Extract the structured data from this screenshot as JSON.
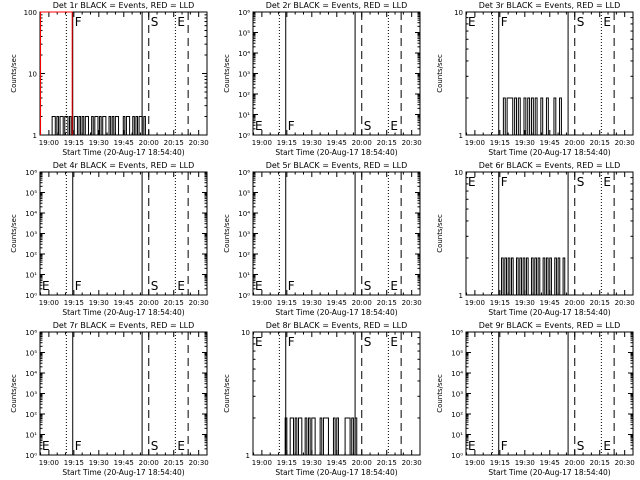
{
  "page": {
    "background": "#ffffff",
    "ink": "#000000",
    "lld_color": "#ff0000"
  },
  "chart_data": [
    {
      "type": "line",
      "title": "Det 1r BLACK = Events, RED = LLD",
      "xlabel": "Start Time (20-Aug-17 18:54:40)",
      "ylabel": "Counts/sec",
      "yscale": "log",
      "ylim": [
        1,
        100
      ],
      "y_tick_labels": [
        {
          "v": 1,
          "t": "1"
        },
        {
          "v": 10,
          "t": "10"
        },
        {
          "v": 100,
          "t": "100"
        }
      ],
      "xlim": [
        "18:54:40",
        "20:35:00"
      ],
      "x_tick_labels": [
        "19:00",
        "19:15",
        "19:30",
        "19:45",
        "20:00",
        "20:15",
        "20:30"
      ],
      "markers": [
        {
          "type": "dotted",
          "x": "19:10:30"
        },
        {
          "type": "solid",
          "x": "19:14:20",
          "label": "F"
        },
        {
          "type": "solid",
          "x": "19:56:00"
        },
        {
          "type": "dashed",
          "x": "20:00:00",
          "label": "S"
        },
        {
          "type": "dotted",
          "x": "20:16:00",
          "label": "E"
        },
        {
          "type": "dashed",
          "x": "20:23:40"
        }
      ],
      "marker_label_pos": "top",
      "series": [
        {
          "role": "events",
          "color": "#000000",
          "x_start": "19:01:00",
          "x_end": "19:58:00",
          "values": [
            1,
            2,
            2,
            1,
            2,
            1,
            2,
            2,
            1,
            2,
            2,
            1,
            2,
            1,
            1,
            2,
            2,
            1,
            2,
            1,
            2,
            1,
            2,
            2,
            1,
            1,
            2,
            1,
            2,
            2,
            1,
            2,
            1,
            2,
            2,
            1,
            1,
            2,
            1,
            2,
            1,
            2,
            2,
            1,
            1,
            1,
            2,
            1,
            2,
            2,
            1,
            1,
            2,
            1,
            2,
            1,
            2,
            2,
            1,
            2
          ]
        },
        {
          "role": "lld",
          "color": "#ff0000",
          "x_start": "18:55:00",
          "x_end": "19:14:00",
          "values": [
            100,
            100,
            100,
            100,
            100,
            100,
            100,
            100
          ]
        }
      ]
    },
    {
      "type": "line",
      "title": "Det 2r BLACK = Events, RED = LLD",
      "xlabel": "Start Time (20-Aug-17 18:54:40)",
      "ylabel": "Counts/sec",
      "yscale": "log",
      "ylim": [
        1,
        1000000
      ],
      "y_tick_labels": [
        {
          "v": 1,
          "t": "10⁰"
        },
        {
          "v": 10,
          "t": "10¹"
        },
        {
          "v": 100,
          "t": "10²"
        },
        {
          "v": 1000,
          "t": "10³"
        },
        {
          "v": 10000,
          "t": "10⁴"
        },
        {
          "v": 100000,
          "t": "10⁵"
        },
        {
          "v": 1000000,
          "t": "10⁶"
        }
      ],
      "xlim": [
        "18:54:40",
        "20:35:00"
      ],
      "x_tick_labels": [
        "19:00",
        "19:15",
        "19:30",
        "19:45",
        "20:00",
        "20:15",
        "20:30"
      ],
      "markers": [
        {
          "type": "dotted",
          "x": "19:10:30"
        },
        {
          "type": "solid",
          "x": "19:14:20",
          "label": "F"
        },
        {
          "type": "solid",
          "x": "19:56:00"
        },
        {
          "type": "dashed",
          "x": "20:00:00",
          "label": "S"
        },
        {
          "type": "dotted",
          "x": "20:16:00",
          "label": "E"
        },
        {
          "type": "dashed",
          "x": "20:23:40"
        }
      ],
      "left_label": "E",
      "marker_label_pos": "bottom",
      "series": []
    },
    {
      "type": "line",
      "title": "Det 3r BLACK = Events, RED = LLD",
      "xlabel": "Start Time (20-Aug-17 18:54:40)",
      "ylabel": "Counts/sec",
      "yscale": "log",
      "ylim": [
        1,
        10
      ],
      "y_tick_labels": [
        {
          "v": 1,
          "t": "1"
        },
        {
          "v": 10,
          "t": "10"
        }
      ],
      "xlim": [
        "18:54:40",
        "20:35:00"
      ],
      "x_tick_labels": [
        "19:00",
        "19:15",
        "19:30",
        "19:45",
        "20:00",
        "20:15",
        "20:30"
      ],
      "markers": [
        {
          "type": "dotted",
          "x": "19:10:30"
        },
        {
          "type": "solid",
          "x": "19:14:20",
          "label": "F"
        },
        {
          "type": "solid",
          "x": "19:56:00"
        },
        {
          "type": "dashed",
          "x": "20:00:00",
          "label": "S"
        },
        {
          "type": "dotted",
          "x": "20:16:00",
          "label": "E"
        },
        {
          "type": "dashed",
          "x": "20:23:40"
        }
      ],
      "left_label": "E",
      "marker_label_pos": "top",
      "series": [
        {
          "role": "events",
          "color": "#000000",
          "x_start": "19:16:00",
          "x_end": "19:52:00",
          "values": [
            1,
            2,
            1,
            2,
            2,
            2,
            1,
            2,
            1,
            2,
            1,
            1,
            2,
            1,
            2,
            1,
            2,
            1,
            2,
            1,
            1,
            2,
            1,
            1,
            2,
            1,
            1,
            1,
            2,
            1,
            1,
            2
          ]
        }
      ]
    },
    {
      "type": "line",
      "title": "Det 4r BLACK = Events, RED = LLD",
      "xlabel": "Start Time (20-Aug-17 18:54:40)",
      "ylabel": "Counts/sec",
      "yscale": "log",
      "ylim": [
        1,
        1000000
      ],
      "y_tick_labels": [
        {
          "v": 1,
          "t": "10⁰"
        },
        {
          "v": 10,
          "t": "10¹"
        },
        {
          "v": 100,
          "t": "10²"
        },
        {
          "v": 1000,
          "t": "10³"
        },
        {
          "v": 10000,
          "t": "10⁴"
        },
        {
          "v": 100000,
          "t": "10⁵"
        },
        {
          "v": 1000000,
          "t": "10⁶"
        }
      ],
      "xlim": [
        "18:54:40",
        "20:35:00"
      ],
      "x_tick_labels": [
        "19:00",
        "19:15",
        "19:30",
        "19:45",
        "20:00",
        "20:15",
        "20:30"
      ],
      "markers": [
        {
          "type": "dotted",
          "x": "19:10:30"
        },
        {
          "type": "solid",
          "x": "19:14:20",
          "label": "F"
        },
        {
          "type": "solid",
          "x": "19:56:00"
        },
        {
          "type": "dashed",
          "x": "20:00:00",
          "label": "S"
        },
        {
          "type": "dotted",
          "x": "20:16:00",
          "label": "E"
        },
        {
          "type": "dashed",
          "x": "20:23:40"
        }
      ],
      "left_label": "E",
      "marker_label_pos": "bottom",
      "series": []
    },
    {
      "type": "line",
      "title": "Det 5r BLACK = Events, RED = LLD",
      "xlabel": "Start Time (20-Aug-17 18:54:40)",
      "ylabel": "Counts/sec",
      "yscale": "log",
      "ylim": [
        1,
        1000000
      ],
      "y_tick_labels": [
        {
          "v": 1,
          "t": "10⁰"
        },
        {
          "v": 10,
          "t": "10¹"
        },
        {
          "v": 100,
          "t": "10²"
        },
        {
          "v": 1000,
          "t": "10³"
        },
        {
          "v": 10000,
          "t": "10⁴"
        },
        {
          "v": 100000,
          "t": "10⁵"
        },
        {
          "v": 1000000,
          "t": "10⁶"
        }
      ],
      "xlim": [
        "18:54:40",
        "20:35:00"
      ],
      "x_tick_labels": [
        "19:00",
        "19:15",
        "19:30",
        "19:45",
        "20:00",
        "20:15",
        "20:30"
      ],
      "markers": [
        {
          "type": "dotted",
          "x": "19:10:30"
        },
        {
          "type": "solid",
          "x": "19:14:20",
          "label": "F"
        },
        {
          "type": "solid",
          "x": "19:56:00"
        },
        {
          "type": "dashed",
          "x": "20:00:00",
          "label": "S"
        },
        {
          "type": "dotted",
          "x": "20:16:00",
          "label": "E"
        },
        {
          "type": "dashed",
          "x": "20:23:40"
        }
      ],
      "left_label": "E",
      "marker_label_pos": "bottom",
      "series": []
    },
    {
      "type": "line",
      "title": "Det 6r BLACK = Events, RED = LLD",
      "xlabel": "Start Time (20-Aug-17 18:54:40)",
      "ylabel": "Counts/sec",
      "yscale": "log",
      "ylim": [
        1,
        10
      ],
      "y_tick_labels": [
        {
          "v": 1,
          "t": "1"
        },
        {
          "v": 10,
          "t": "10"
        }
      ],
      "xlim": [
        "18:54:40",
        "20:35:00"
      ],
      "x_tick_labels": [
        "19:00",
        "19:15",
        "19:30",
        "19:45",
        "20:00",
        "20:15",
        "20:30"
      ],
      "markers": [
        {
          "type": "dotted",
          "x": "19:10:30"
        },
        {
          "type": "solid",
          "x": "19:14:20",
          "label": "F"
        },
        {
          "type": "solid",
          "x": "19:56:00"
        },
        {
          "type": "dashed",
          "x": "20:00:00",
          "label": "S"
        },
        {
          "type": "dotted",
          "x": "20:16:00",
          "label": "E"
        },
        {
          "type": "dashed",
          "x": "20:23:40"
        }
      ],
      "left_label": "E",
      "marker_label_pos": "top",
      "series": [
        {
          "role": "events",
          "color": "#000000",
          "x_start": "19:15:00",
          "x_end": "19:55:00",
          "values": [
            1,
            2,
            1,
            2,
            1,
            2,
            1,
            2,
            1,
            1,
            2,
            1,
            2,
            1,
            2,
            1,
            2,
            1,
            1,
            2,
            1,
            2,
            1,
            2,
            1,
            1,
            2,
            1,
            2,
            1,
            2,
            1,
            1,
            2,
            1,
            2,
            1,
            1,
            2,
            1
          ]
        }
      ]
    },
    {
      "type": "line",
      "title": "Det 7r BLACK = Events, RED = LLD",
      "xlabel": "Start Time (20-Aug-17 18:54:40)",
      "ylabel": "Counts/sec",
      "yscale": "log",
      "ylim": [
        1,
        1000000
      ],
      "y_tick_labels": [
        {
          "v": 1,
          "t": "10⁰"
        },
        {
          "v": 10,
          "t": "10¹"
        },
        {
          "v": 100,
          "t": "10²"
        },
        {
          "v": 1000,
          "t": "10³"
        },
        {
          "v": 10000,
          "t": "10⁴"
        },
        {
          "v": 100000,
          "t": "10⁵"
        },
        {
          "v": 1000000,
          "t": "10⁶"
        }
      ],
      "xlim": [
        "18:54:40",
        "20:35:00"
      ],
      "x_tick_labels": [
        "19:00",
        "19:15",
        "19:30",
        "19:45",
        "20:00",
        "20:15",
        "20:30"
      ],
      "markers": [
        {
          "type": "dotted",
          "x": "19:10:30"
        },
        {
          "type": "solid",
          "x": "19:14:20",
          "label": "F"
        },
        {
          "type": "solid",
          "x": "19:56:00"
        },
        {
          "type": "dashed",
          "x": "20:00:00",
          "label": "S"
        },
        {
          "type": "dotted",
          "x": "20:16:00",
          "label": "E"
        },
        {
          "type": "dashed",
          "x": "20:23:40"
        }
      ],
      "left_label": "E",
      "marker_label_pos": "bottom",
      "series": []
    },
    {
      "type": "line",
      "title": "Det 8r BLACK = Events, RED = LLD",
      "xlabel": "Start Time (20-Aug-17 18:54:40)",
      "ylabel": "Counts/sec",
      "yscale": "log",
      "ylim": [
        1,
        10
      ],
      "y_tick_labels": [
        {
          "v": 1,
          "t": "1"
        },
        {
          "v": 10,
          "t": "10"
        }
      ],
      "xlim": [
        "18:54:40",
        "20:35:00"
      ],
      "x_tick_labels": [
        "19:00",
        "19:15",
        "19:30",
        "19:45",
        "20:00",
        "20:15",
        "20:30"
      ],
      "markers": [
        {
          "type": "dotted",
          "x": "19:10:30"
        },
        {
          "type": "solid",
          "x": "19:14:20",
          "label": "F"
        },
        {
          "type": "solid",
          "x": "19:56:00"
        },
        {
          "type": "dashed",
          "x": "20:00:00",
          "label": "S"
        },
        {
          "type": "dotted",
          "x": "20:16:00",
          "label": "E"
        },
        {
          "type": "dashed",
          "x": "20:23:40"
        }
      ],
      "left_label": "E",
      "marker_label_pos": "top",
      "series": [
        {
          "role": "events",
          "color": "#000000",
          "x_start": "19:13:00",
          "x_end": "19:58:00",
          "values": [
            1,
            2,
            1,
            1,
            2,
            2,
            1,
            2,
            1,
            2,
            2,
            1,
            1,
            2,
            1,
            2,
            1,
            2,
            2,
            1,
            1,
            1,
            2,
            1,
            2,
            2,
            2,
            1,
            1,
            1,
            2,
            1,
            2,
            1,
            1,
            1,
            1,
            2,
            2,
            2,
            1,
            2,
            1,
            2,
            1
          ]
        }
      ]
    },
    {
      "type": "line",
      "title": "Det 9r BLACK = Events, RED = LLD",
      "xlabel": "Start Time (20-Aug-17 18:54:40)",
      "ylabel": "Counts/sec",
      "yscale": "log",
      "ylim": [
        1,
        1000000
      ],
      "y_tick_labels": [
        {
          "v": 1,
          "t": "10⁰"
        },
        {
          "v": 10,
          "t": "10¹"
        },
        {
          "v": 100,
          "t": "10²"
        },
        {
          "v": 1000,
          "t": "10³"
        },
        {
          "v": 10000,
          "t": "10⁴"
        },
        {
          "v": 100000,
          "t": "10⁵"
        },
        {
          "v": 1000000,
          "t": "10⁶"
        }
      ],
      "xlim": [
        "18:54:40",
        "20:35:00"
      ],
      "x_tick_labels": [
        "19:00",
        "19:15",
        "19:30",
        "19:45",
        "20:00",
        "20:15",
        "20:30"
      ],
      "markers": [
        {
          "type": "dotted",
          "x": "19:10:30"
        },
        {
          "type": "solid",
          "x": "19:14:20",
          "label": "F"
        },
        {
          "type": "solid",
          "x": "19:56:00"
        },
        {
          "type": "dashed",
          "x": "20:00:00",
          "label": "S"
        },
        {
          "type": "dotted",
          "x": "20:16:00",
          "label": "E"
        },
        {
          "type": "dashed",
          "x": "20:23:40"
        }
      ],
      "left_label": "E",
      "marker_label_pos": "bottom",
      "series": []
    }
  ]
}
